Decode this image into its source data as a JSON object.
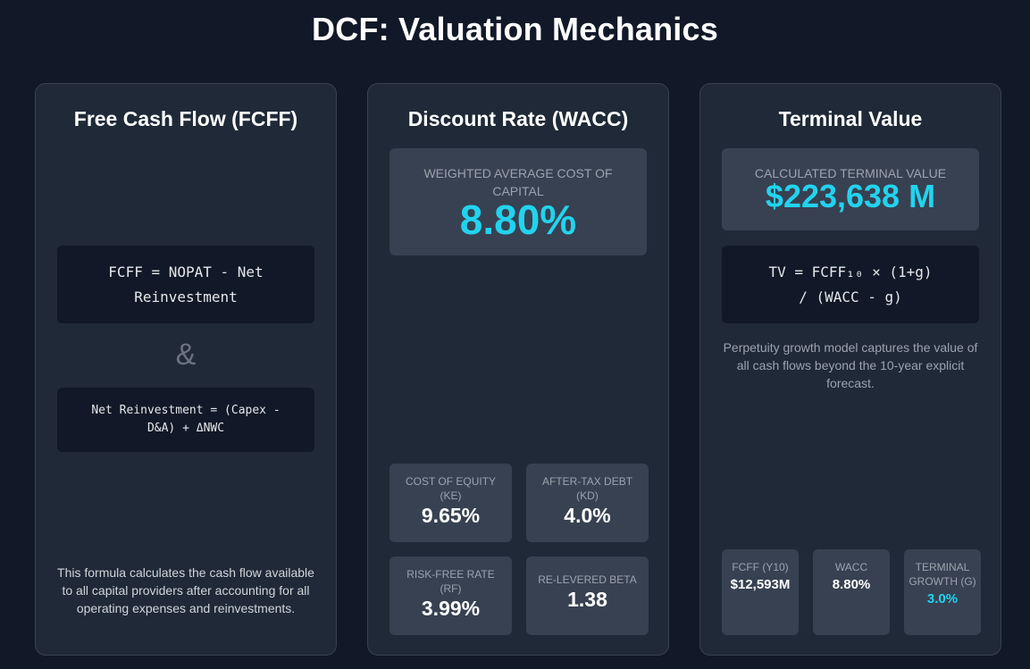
{
  "page": {
    "title": "DCF: Valuation Mechanics"
  },
  "fcff_card": {
    "title": "Free Cash Flow (FCFF)",
    "formula": "FCFF = NOPAT - Net Reinvestment",
    "connector": "&",
    "net_reinvestment_formula": "Net Reinvestment = (Capex - D&A) + ΔNWC",
    "description": "This formula calculates the cash flow available to all capital providers after accounting for all operating expenses and reinvestments."
  },
  "wacc_card": {
    "title": "Discount Rate (WACC)",
    "hero": {
      "label": "Weighted Average Cost of Capital",
      "value": "8.80%"
    },
    "stats": [
      {
        "label": "Cost of Equity (Ke)",
        "value": "9.65%"
      },
      {
        "label": "After-Tax Debt (Kd)",
        "value": "4.0%"
      },
      {
        "label": "Risk-Free Rate (Rf)",
        "value": "3.99%"
      },
      {
        "label": "Re-levered Beta",
        "value": "1.38"
      }
    ]
  },
  "tv_card": {
    "title": "Terminal Value",
    "hero": {
      "label": "Calculated Terminal Value",
      "value": "$223,638 M"
    },
    "formula": "TV = FCFF₁₀ × (1+g) / (WACC - g)",
    "description": "Perpetuity growth model captures the value of all cash flows beyond the 10-year explicit forecast.",
    "stats": [
      {
        "label": "FCFF (Y10)",
        "value": "$12,593M"
      },
      {
        "label": "WACC",
        "value": "8.80%"
      },
      {
        "label": "Terminal Growth (g)",
        "value": "3.0%"
      }
    ]
  },
  "colors": {
    "accent": "#22d3ee",
    "background": "#111827",
    "card": "#1f2937",
    "panel": "#374151"
  }
}
